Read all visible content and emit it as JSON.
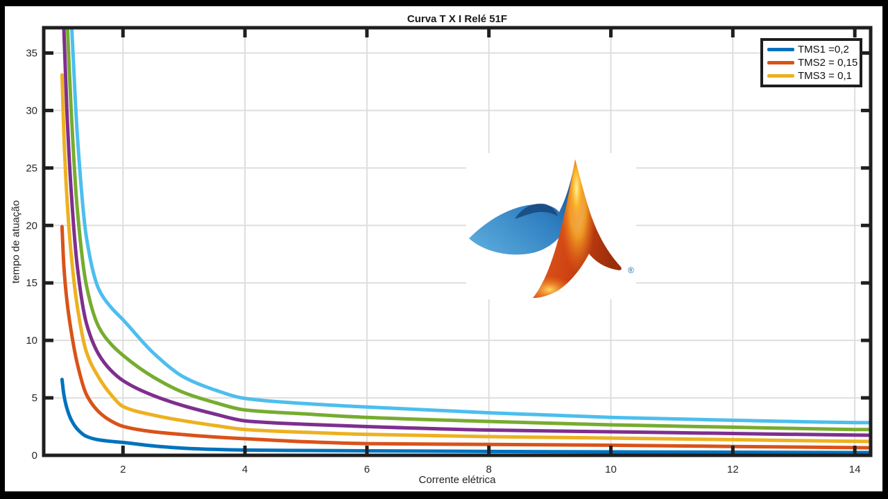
{
  "figure": {
    "title": "Curva T X I Relé 51F",
    "xlabel": "Corrente elétrica",
    "ylabel": "tempo de atuação"
  },
  "legend": {
    "items": [
      {
        "label": "TMS1 =0,2",
        "color": "#0072BD"
      },
      {
        "label": "TMS2 = 0,15",
        "color": "#D95319"
      },
      {
        "label": "TMS3 = 0,1",
        "color": "#EDB120"
      }
    ]
  },
  "watermark": {
    "name": "matlab-logo",
    "registered_symbol": "®"
  },
  "colors": {
    "axis": "#1f1f1f",
    "grid": "#dedede",
    "tick_label": "#262626",
    "background": "#ffffff",
    "frame": "#000000"
  },
  "chart_data": {
    "type": "line",
    "title": "Curva T X I Relé 51F",
    "xlabel": "Corrente elétrica",
    "ylabel": "tempo de atuação",
    "xlim": [
      0.7,
      14.26
    ],
    "ylim": [
      0,
      37.2
    ],
    "xticks": [
      2,
      4,
      6,
      8,
      10,
      12,
      14
    ],
    "yticks": [
      0,
      5,
      10,
      15,
      20,
      25,
      30,
      35
    ],
    "grid": true,
    "legend_position": "top-right",
    "series": [
      {
        "name": "TMS1 =0,2",
        "color": "#0072BD",
        "points": [
          [
            1.0,
            6.6
          ],
          [
            1.03,
            5.3
          ],
          [
            1.08,
            4.1
          ],
          [
            1.15,
            3.1
          ],
          [
            1.25,
            2.3
          ],
          [
            1.4,
            1.65
          ],
          [
            1.6,
            1.35
          ],
          [
            1.8,
            1.22
          ],
          [
            2,
            1.12
          ],
          [
            2.5,
            0.82
          ],
          [
            3,
            0.62
          ],
          [
            3.5,
            0.52
          ],
          [
            4,
            0.46
          ],
          [
            5,
            0.42
          ],
          [
            6,
            0.39
          ],
          [
            8,
            0.34
          ],
          [
            10,
            0.3
          ],
          [
            12,
            0.27
          ],
          [
            14,
            0.24
          ],
          [
            14.26,
            0.24
          ]
        ]
      },
      {
        "name": "TMS2 = 0,15",
        "color": "#D95319",
        "points": [
          [
            1.0,
            19.9
          ],
          [
            1.03,
            16.5
          ],
          [
            1.08,
            13.5
          ],
          [
            1.15,
            10.8
          ],
          [
            1.25,
            8.0
          ],
          [
            1.4,
            5.3
          ],
          [
            1.6,
            3.8
          ],
          [
            1.8,
            3.0
          ],
          [
            2,
            2.52
          ],
          [
            2.5,
            2.05
          ],
          [
            3,
            1.8
          ],
          [
            3.5,
            1.6
          ],
          [
            4,
            1.45
          ],
          [
            5,
            1.18
          ],
          [
            6,
            1.02
          ],
          [
            8,
            0.95
          ],
          [
            10,
            0.88
          ],
          [
            12,
            0.77
          ],
          [
            14,
            0.67
          ],
          [
            14.26,
            0.66
          ]
        ]
      },
      {
        "name": "TMS3 = 0,1",
        "color": "#EDB120",
        "points": [
          [
            1.0,
            33.1
          ],
          [
            1.03,
            28
          ],
          [
            1.08,
            22.5
          ],
          [
            1.15,
            17.5
          ],
          [
            1.25,
            13
          ],
          [
            1.4,
            9.0
          ],
          [
            1.6,
            6.8
          ],
          [
            1.8,
            5.3
          ],
          [
            2,
            4.25
          ],
          [
            2.5,
            3.5
          ],
          [
            3,
            3.0
          ],
          [
            3.5,
            2.6
          ],
          [
            4,
            2.25
          ],
          [
            5,
            2.0
          ],
          [
            6,
            1.82
          ],
          [
            8,
            1.63
          ],
          [
            10,
            1.5
          ],
          [
            12,
            1.36
          ],
          [
            14,
            1.22
          ],
          [
            14.26,
            1.21
          ]
        ]
      },
      {
        "name": "unlabeled-4",
        "color": "#7E2F8E",
        "points": [
          [
            1.03,
            37.2
          ],
          [
            1.08,
            30
          ],
          [
            1.15,
            23
          ],
          [
            1.25,
            16.5
          ],
          [
            1.4,
            11.5
          ],
          [
            1.6,
            8.8
          ],
          [
            1.8,
            7.4
          ],
          [
            2,
            6.5
          ],
          [
            2.5,
            5.2
          ],
          [
            3,
            4.3
          ],
          [
            3.5,
            3.6
          ],
          [
            4,
            3.0
          ],
          [
            5,
            2.7
          ],
          [
            6,
            2.5
          ],
          [
            8,
            2.2
          ],
          [
            10,
            2.05
          ],
          [
            12,
            1.9
          ],
          [
            14,
            1.76
          ],
          [
            14.26,
            1.75
          ]
        ]
      },
      {
        "name": "unlabeled-5",
        "color": "#77AC30",
        "points": [
          [
            1.09,
            37.2
          ],
          [
            1.15,
            30
          ],
          [
            1.25,
            21.5
          ],
          [
            1.4,
            14.8
          ],
          [
            1.6,
            11.2
          ],
          [
            1.8,
            9.7
          ],
          [
            2,
            8.7
          ],
          [
            2.5,
            6.8
          ],
          [
            3,
            5.45
          ],
          [
            3.5,
            4.6
          ],
          [
            4,
            3.95
          ],
          [
            5,
            3.6
          ],
          [
            6,
            3.3
          ],
          [
            8,
            2.95
          ],
          [
            10,
            2.65
          ],
          [
            12,
            2.45
          ],
          [
            14,
            2.25
          ],
          [
            14.26,
            2.24
          ]
        ]
      },
      {
        "name": "unlabeled-6",
        "color": "#4DBEEE",
        "points": [
          [
            1.16,
            37.2
          ],
          [
            1.25,
            28
          ],
          [
            1.4,
            19
          ],
          [
            1.6,
            14.5
          ],
          [
            1.8,
            12.9
          ],
          [
            2,
            11.8
          ],
          [
            2.5,
            8.9
          ],
          [
            3,
            6.8
          ],
          [
            3.5,
            5.7
          ],
          [
            4,
            4.95
          ],
          [
            5,
            4.5
          ],
          [
            6,
            4.2
          ],
          [
            8,
            3.7
          ],
          [
            10,
            3.3
          ],
          [
            12,
            3.05
          ],
          [
            14,
            2.85
          ],
          [
            14.26,
            2.84
          ]
        ]
      }
    ]
  }
}
